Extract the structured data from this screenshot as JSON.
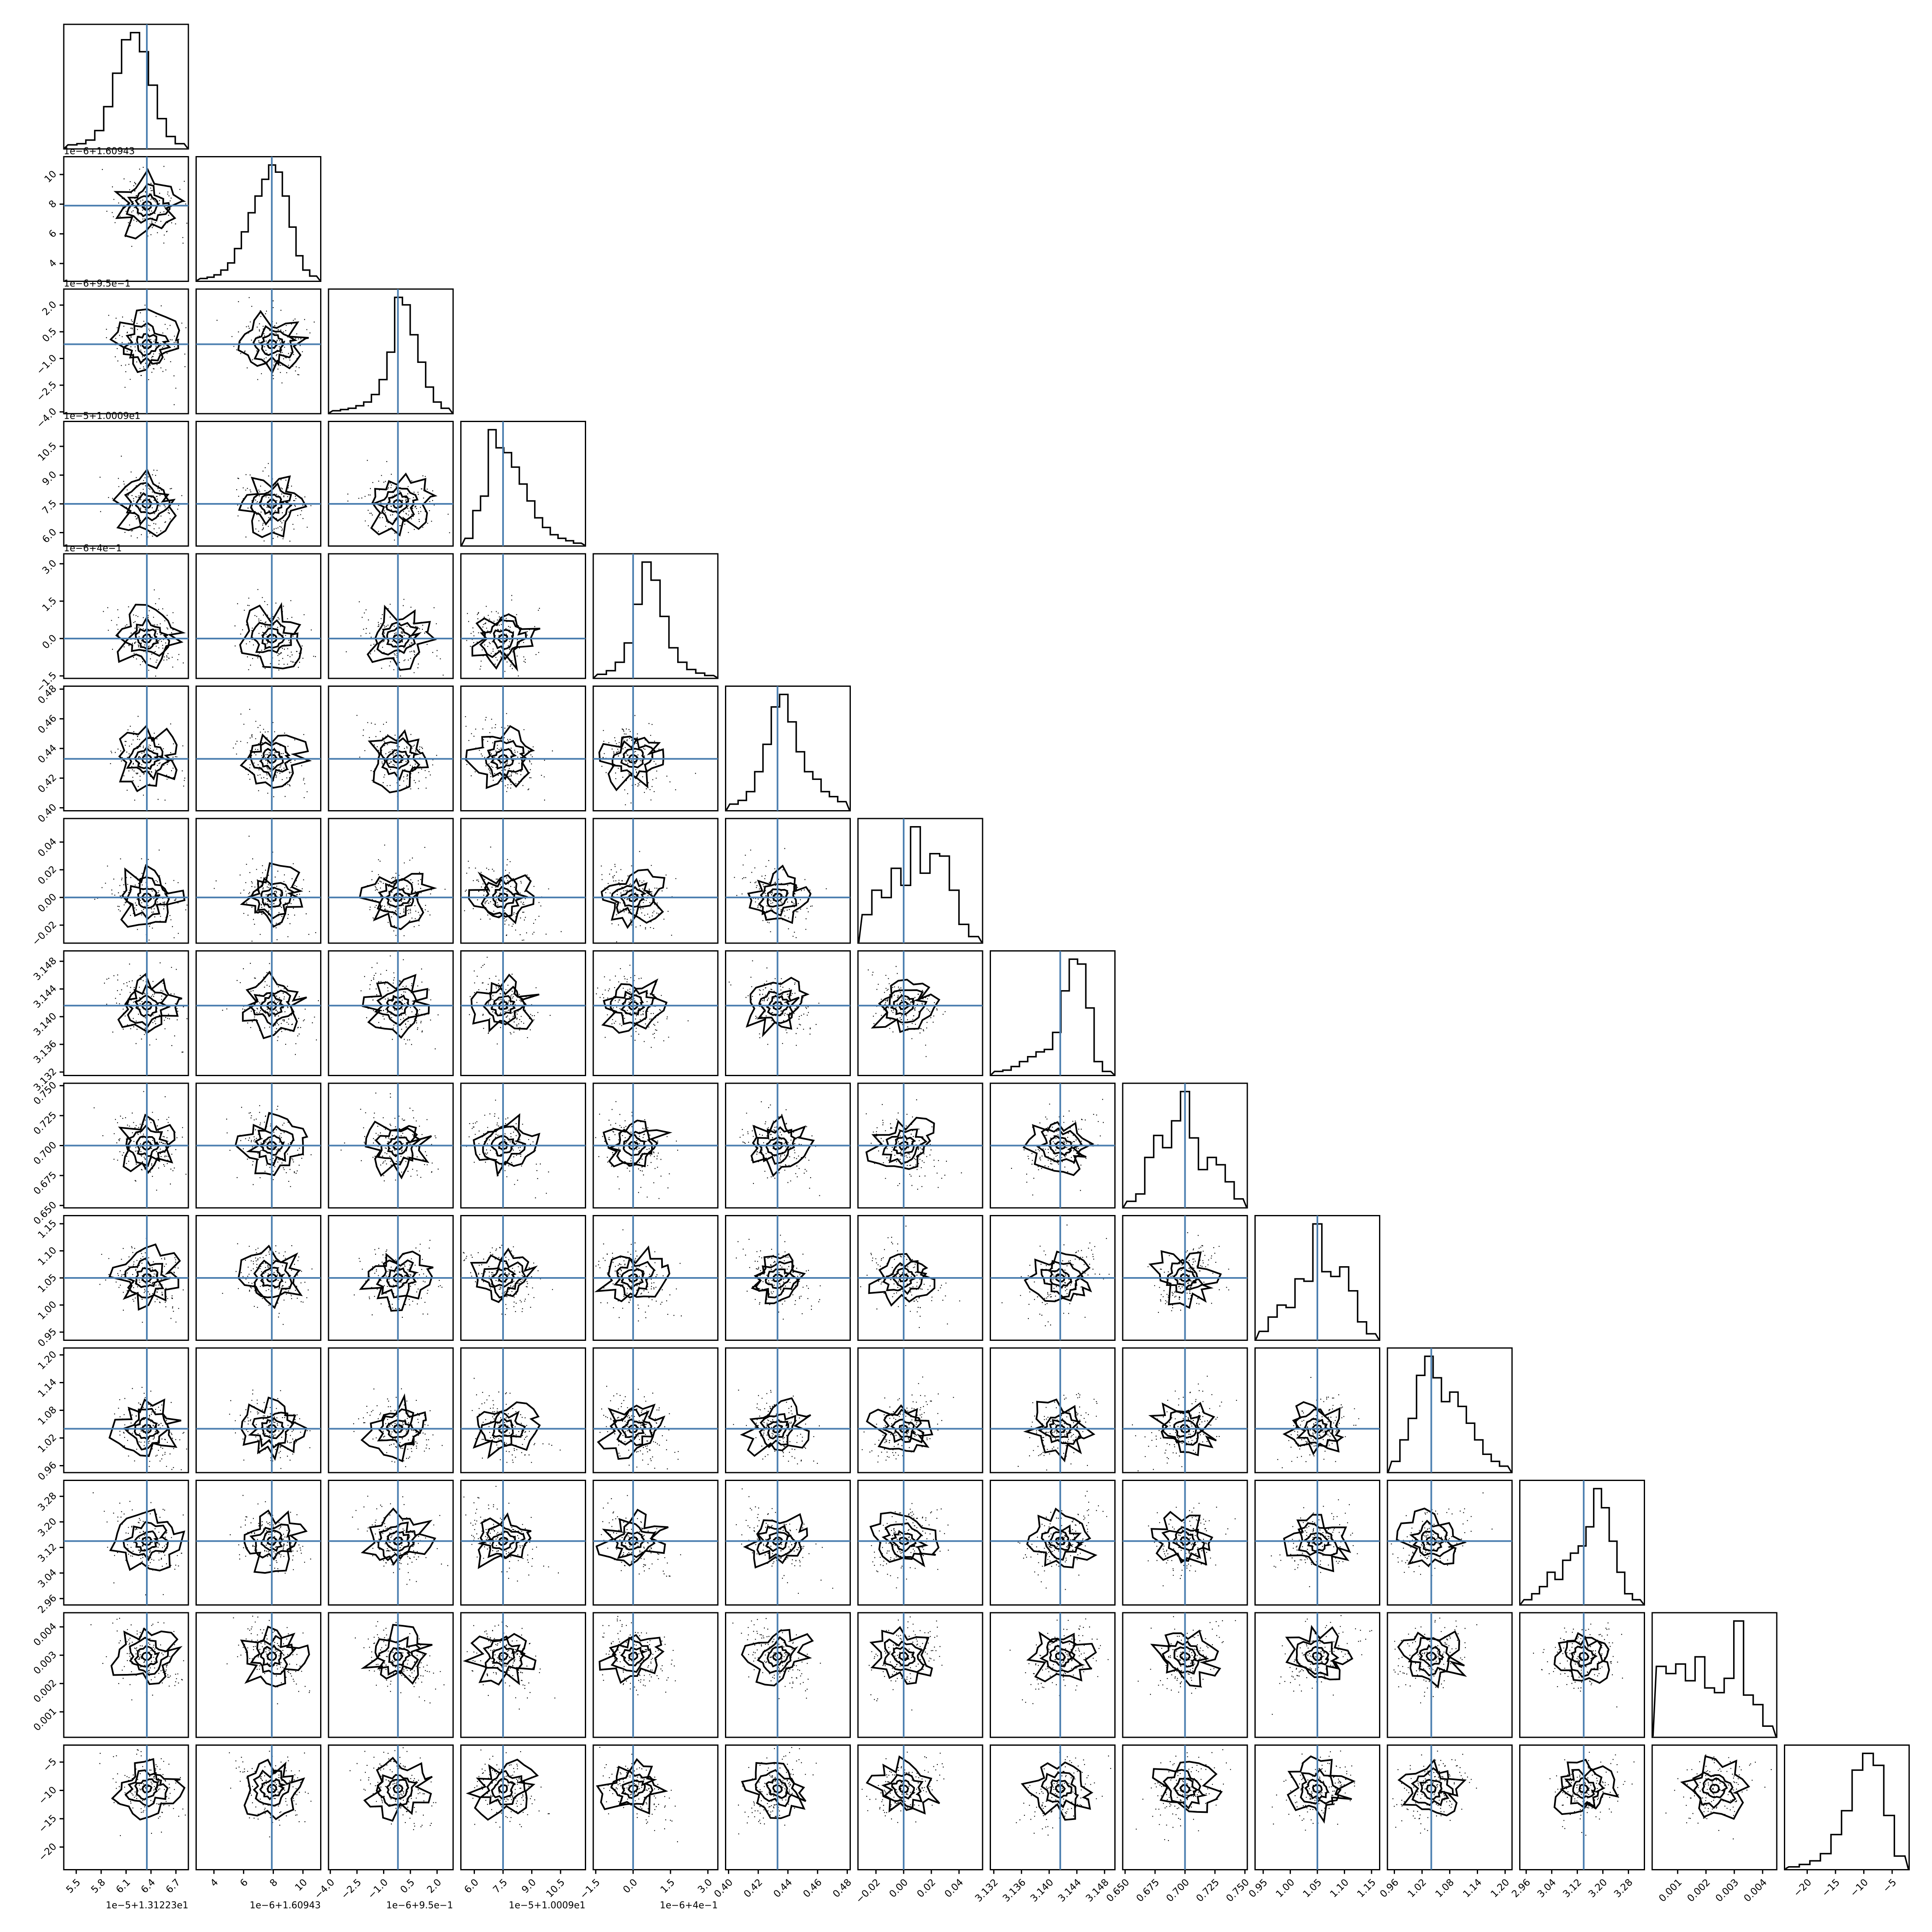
{
  "chart_data": {
    "type": "corner",
    "n_params": 14,
    "truth_color": "#4c7fb0",
    "contour_color": "#000000",
    "axes": [
      {
        "ticks": [
          "5.5",
          "5.8",
          "6.1",
          "6.4",
          "6.7"
        ],
        "tick_values": [
          5.5,
          5.8,
          6.1,
          6.4,
          6.7
        ],
        "range": [
          5.35,
          6.85
        ],
        "offset": "1e−5+1.31223e1",
        "truth": 6.35
      },
      {
        "ticks": [
          "4",
          "6",
          "8",
          "10"
        ],
        "tick_values": [
          4,
          6,
          8,
          10
        ],
        "range": [
          2.8,
          11.2
        ],
        "offset": "1e−6+1.60943",
        "truth": 7.9
      },
      {
        "ticks": [
          "−4.0",
          "−2.5",
          "−1.0",
          "0.5",
          "2.0"
        ],
        "tick_values": [
          -4.0,
          -2.5,
          -1.0,
          0.5,
          2.0
        ],
        "range": [
          -4.1,
          2.9
        ],
        "offset": "1e−6+9.5e−1",
        "truth": -0.2
      },
      {
        "ticks": [
          "6.0",
          "7.5",
          "9.0",
          "10.5"
        ],
        "tick_values": [
          6.0,
          7.5,
          9.0,
          10.5
        ],
        "range": [
          5.3,
          11.8
        ],
        "offset": "1e−5+1.0009e1",
        "truth": 7.5
      },
      {
        "ticks": [
          "−1.5",
          "0.0",
          "1.5",
          "3.0"
        ],
        "tick_values": [
          -1.5,
          0.0,
          1.5,
          3.0
        ],
        "range": [
          -1.6,
          3.4
        ],
        "offset": "1e−6+4e−1",
        "truth": 0.0
      },
      {
        "ticks": [
          "0.40",
          "0.42",
          "0.44",
          "0.46",
          "0.48"
        ],
        "tick_values": [
          0.4,
          0.42,
          0.44,
          0.46,
          0.48
        ],
        "range": [
          0.398,
          0.482
        ],
        "offset": "",
        "truth": 0.433
      },
      {
        "ticks": [
          "−0.02",
          "0.00",
          "0.02",
          "0.04"
        ],
        "tick_values": [
          -0.02,
          0.0,
          0.02,
          0.04
        ],
        "range": [
          -0.033,
          0.057
        ],
        "offset": "",
        "truth": 0.0
      },
      {
        "ticks": [
          "3.132",
          "3.136",
          "3.140",
          "3.144",
          "3.148"
        ],
        "tick_values": [
          3.132,
          3.136,
          3.14,
          3.144,
          3.148
        ],
        "range": [
          3.1315,
          3.1495
        ],
        "offset": "",
        "truth": 3.1416
      },
      {
        "ticks": [
          "0.650",
          "0.675",
          "0.700",
          "0.725",
          "0.750"
        ],
        "tick_values": [
          0.65,
          0.675,
          0.7,
          0.725,
          0.75
        ],
        "range": [
          0.648,
          0.752
        ],
        "offset": "",
        "truth": 0.7
      },
      {
        "ticks": [
          "0.95",
          "1.00",
          "1.05",
          "1.10",
          "1.15"
        ],
        "tick_values": [
          0.95,
          1.0,
          1.05,
          1.1,
          1.15
        ],
        "range": [
          0.935,
          1.165
        ],
        "offset": "",
        "truth": 1.05
      },
      {
        "ticks": [
          "0.96",
          "1.02",
          "1.08",
          "1.14",
          "1.20"
        ],
        "tick_values": [
          0.96,
          1.02,
          1.08,
          1.14,
          1.2
        ],
        "range": [
          0.945,
          1.215
        ],
        "offset": "",
        "truth": 1.04
      },
      {
        "ticks": [
          "2.96",
          "3.04",
          "3.12",
          "3.20",
          "3.28"
        ],
        "tick_values": [
          2.96,
          3.04,
          3.12,
          3.2,
          3.28
        ],
        "range": [
          2.94,
          3.33
        ],
        "offset": "",
        "truth": 3.14
      },
      {
        "ticks": [
          "0.001",
          "0.002",
          "0.003",
          "0.004"
        ],
        "tick_values": [
          0.001,
          0.002,
          0.003,
          0.004
        ],
        "range": [
          0.0001,
          0.0045
        ],
        "offset": "",
        "truth": null
      },
      {
        "ticks": [
          "−20",
          "−15",
          "−10",
          "−5"
        ],
        "tick_values": [
          -20,
          -15,
          -10,
          -5
        ],
        "range": [
          -24,
          -2
        ],
        "offset": "",
        "truth": null
      }
    ],
    "histograms": [
      [
        2,
        3,
        6,
        14,
        34,
        62,
        90,
        96,
        80,
        52,
        24,
        9,
        3
      ],
      [
        1,
        2,
        4,
        8,
        14,
        26,
        40,
        56,
        70,
        84,
        96,
        90,
        70,
        44,
        20,
        8,
        3
      ],
      [
        1,
        2,
        3,
        5,
        8,
        14,
        26,
        48,
        92,
        86,
        62,
        40,
        20,
        8,
        3
      ],
      [
        5,
        28,
        40,
        95,
        80,
        76,
        64,
        50,
        36,
        22,
        14,
        8,
        5,
        3,
        1
      ],
      [
        2,
        5,
        12,
        28,
        60,
        95,
        80,
        50,
        24,
        12,
        6,
        3,
        1
      ],
      [
        4,
        7,
        14,
        30,
        52,
        82,
        92,
        70,
        46,
        30,
        24,
        14,
        10,
        6
      ],
      [
        22,
        42,
        36,
        60,
        46,
        94,
        56,
        72,
        70,
        42,
        14,
        4
      ],
      [
        2,
        3,
        6,
        10,
        14,
        18,
        20,
        34,
        68,
        94,
        90,
        54,
        10,
        2
      ],
      [
        4,
        10,
        40,
        58,
        48,
        70,
        94,
        56,
        30,
        40,
        34,
        20,
        6
      ],
      [
        6,
        18,
        28,
        26,
        50,
        48,
        96,
        56,
        52,
        60,
        40,
        14,
        4
      ],
      [
        8,
        26,
        44,
        80,
        96,
        78,
        58,
        66,
        54,
        40,
        26,
        14,
        8,
        4
      ],
      [
        3,
        8,
        14,
        26,
        20,
        36,
        42,
        48,
        64,
        96,
        80,
        52,
        26,
        8,
        3
      ],
      [
        58,
        52,
        60,
        46,
        66,
        40,
        36,
        48,
        96,
        34,
        26,
        8
      ],
      [
        1,
        3,
        6,
        12,
        28,
        48,
        82,
        96,
        86,
        44,
        10
      ]
    ]
  }
}
